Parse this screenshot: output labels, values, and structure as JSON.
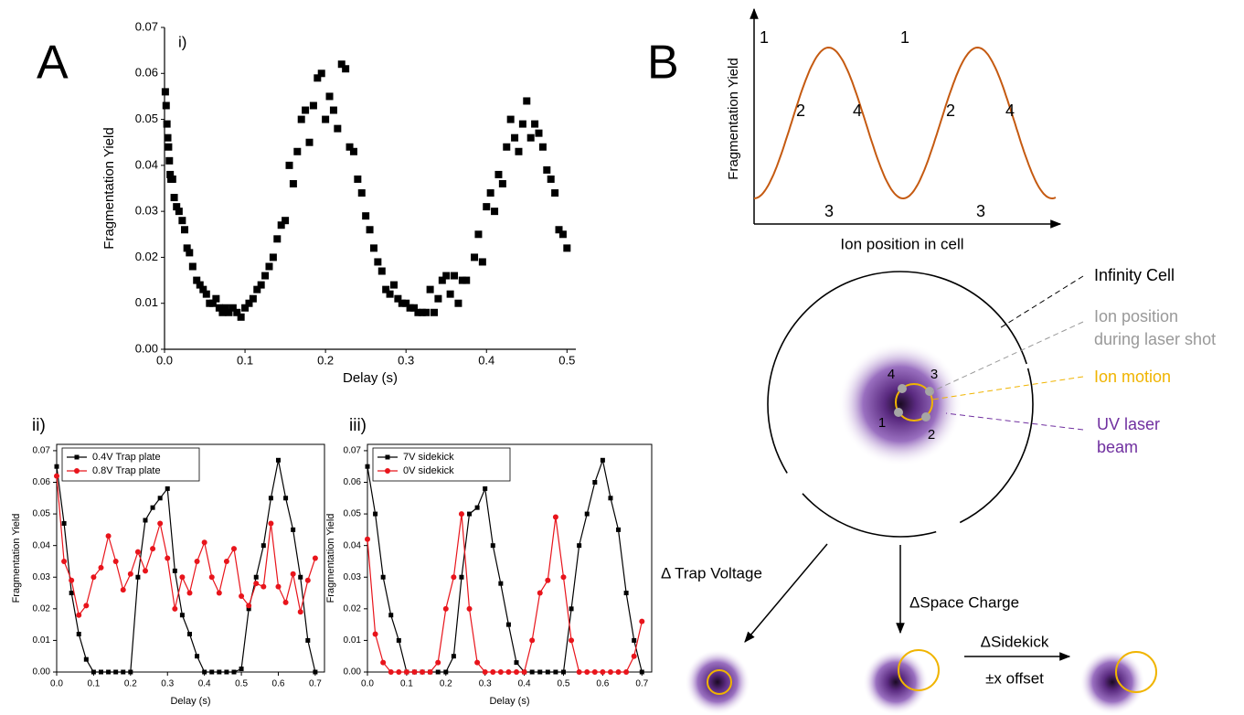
{
  "panel_labels": [
    "A",
    "B"
  ],
  "chart_data": [
    {
      "type": "scatter",
      "annotation": "i)",
      "x_label": "Delay (s)",
      "y_label": "Fragmentation Yield",
      "color": "#000000",
      "x": [
        0.001,
        0.002,
        0.003,
        0.004,
        0.005,
        0.006,
        0.007,
        0.008,
        0.01,
        0.012,
        0.015,
        0.018,
        0.022,
        0.025,
        0.028,
        0.031,
        0.035,
        0.04,
        0.044,
        0.048,
        0.052,
        0.056,
        0.06,
        0.064,
        0.068,
        0.072,
        0.076,
        0.08,
        0.085,
        0.09,
        0.095,
        0.1,
        0.105,
        0.11,
        0.115,
        0.12,
        0.125,
        0.13,
        0.135,
        0.14,
        0.145,
        0.15,
        0.155,
        0.16,
        0.165,
        0.17,
        0.175,
        0.18,
        0.185,
        0.19,
        0.195,
        0.2,
        0.205,
        0.21,
        0.215,
        0.22,
        0.225,
        0.23,
        0.235,
        0.24,
        0.245,
        0.25,
        0.255,
        0.26,
        0.265,
        0.27,
        0.275,
        0.28,
        0.285,
        0.29,
        0.295,
        0.3,
        0.305,
        0.31,
        0.315,
        0.32,
        0.325,
        0.33,
        0.335,
        0.34,
        0.345,
        0.35,
        0.355,
        0.36,
        0.365,
        0.37,
        0.375,
        0.385,
        0.39,
        0.395,
        0.4,
        0.405,
        0.41,
        0.415,
        0.42,
        0.425,
        0.43,
        0.435,
        0.44,
        0.445,
        0.45,
        0.455,
        0.46,
        0.465,
        0.47,
        0.475,
        0.48,
        0.485,
        0.49,
        0.495,
        0.5
      ],
      "values": [
        0.056,
        0.053,
        0.049,
        0.046,
        0.044,
        0.041,
        0.038,
        0.037,
        0.037,
        0.033,
        0.031,
        0.03,
        0.028,
        0.026,
        0.022,
        0.021,
        0.018,
        0.015,
        0.014,
        0.013,
        0.012,
        0.01,
        0.01,
        0.011,
        0.009,
        0.008,
        0.009,
        0.008,
        0.009,
        0.008,
        0.007,
        0.009,
        0.01,
        0.011,
        0.013,
        0.014,
        0.016,
        0.018,
        0.02,
        0.024,
        0.027,
        0.028,
        0.04,
        0.036,
        0.043,
        0.05,
        0.052,
        0.045,
        0.053,
        0.059,
        0.06,
        0.05,
        0.055,
        0.052,
        0.048,
        0.062,
        0.061,
        0.044,
        0.043,
        0.037,
        0.034,
        0.029,
        0.026,
        0.022,
        0.019,
        0.017,
        0.013,
        0.012,
        0.014,
        0.011,
        0.01,
        0.01,
        0.009,
        0.009,
        0.008,
        0.008,
        0.008,
        0.013,
        0.008,
        0.011,
        0.015,
        0.016,
        0.012,
        0.016,
        0.01,
        0.015,
        0.015,
        0.02,
        0.025,
        0.019,
        0.031,
        0.034,
        0.03,
        0.038,
        0.036,
        0.044,
        0.05,
        0.046,
        0.043,
        0.049,
        0.054,
        0.046,
        0.049,
        0.047,
        0.044,
        0.039,
        0.037,
        0.034,
        0.026,
        0.025,
        0.022
      ],
      "xlim": [
        0,
        0.511
      ],
      "ylim": [
        0,
        0.07
      ],
      "xticks": [
        {
          "value": 0,
          "label": "0.0"
        },
        0.1,
        0.2,
        0.3,
        0.4,
        0.5
      ],
      "yticks": [
        {
          "value": 0,
          "label": "0.00"
        },
        0.01,
        0.02,
        0.03,
        0.04,
        0.05,
        0.06,
        0.07
      ]
    },
    {
      "type": "line",
      "annotation": "ii)",
      "x_label": "Delay (s)",
      "y_label": "Fragmentation Yield",
      "legend": "upper left",
      "x": [
        0,
        0.02,
        0.04,
        0.06,
        0.08,
        0.1,
        0.12,
        0.14,
        0.16,
        0.18,
        0.2,
        0.22,
        0.24,
        0.26,
        0.28,
        0.3,
        0.32,
        0.34,
        0.36,
        0.38,
        0.4,
        0.42,
        0.44,
        0.46,
        0.48,
        0.5,
        0.52,
        0.54,
        0.56,
        0.58,
        0.6,
        0.62,
        0.64,
        0.66,
        0.68,
        0.7
      ],
      "series": [
        {
          "name": "0.4V Trap plate",
          "color": "#000000",
          "marker": "square",
          "values": [
            0.065,
            0.047,
            0.025,
            0.012,
            0.004,
            0,
            0,
            0,
            0,
            0,
            0,
            0.03,
            0.048,
            0.052,
            0.055,
            0.058,
            0.032,
            0.018,
            0.012,
            0.005,
            0,
            0,
            0,
            0,
            0,
            0.001,
            0.02,
            0.03,
            0.04,
            0.055,
            0.067,
            0.055,
            0.045,
            0.03,
            0.01,
            0
          ]
        },
        {
          "name": "0.8V Trap plate",
          "color": "#e8141b",
          "marker": "circle",
          "values": [
            0.062,
            0.035,
            0.029,
            0.018,
            0.021,
            0.03,
            0.033,
            0.043,
            0.035,
            0.026,
            0.031,
            0.038,
            0.032,
            0.039,
            0.047,
            0.036,
            0.02,
            0.03,
            0.025,
            0.035,
            0.041,
            0.03,
            0.025,
            0.035,
            0.039,
            0.024,
            0.021,
            0.028,
            0.027,
            0.047,
            0.027,
            0.022,
            0.031,
            0.019,
            0.029,
            0.036
          ]
        }
      ],
      "xlim": [
        0,
        0.725
      ],
      "ylim": [
        0,
        0.072
      ],
      "xticks": [
        {
          "value": 0,
          "label": "0.0"
        },
        0.1,
        0.2,
        0.3,
        0.4,
        0.5,
        0.6,
        0.7
      ],
      "yticks": [
        {
          "value": 0,
          "label": "0.00"
        },
        0.01,
        0.02,
        0.03,
        0.04,
        0.05,
        0.06,
        0.07
      ]
    },
    {
      "type": "line",
      "annotation": "iii)",
      "x_label": "Delay (s)",
      "y_label": "Fragmentation Yield",
      "legend": "upper left",
      "x": [
        0,
        0.02,
        0.04,
        0.06,
        0.08,
        0.1,
        0.12,
        0.14,
        0.16,
        0.18,
        0.2,
        0.22,
        0.24,
        0.26,
        0.28,
        0.3,
        0.32,
        0.34,
        0.36,
        0.38,
        0.4,
        0.42,
        0.44,
        0.46,
        0.48,
        0.5,
        0.52,
        0.54,
        0.56,
        0.58,
        0.6,
        0.62,
        0.64,
        0.66,
        0.68,
        0.7
      ],
      "series": [
        {
          "name": "7V sidekick",
          "color": "#000000",
          "marker": "square",
          "values": [
            0.065,
            0.05,
            0.03,
            0.018,
            0.01,
            0,
            0,
            0,
            0,
            0,
            0,
            0.005,
            0.03,
            0.05,
            0.052,
            0.058,
            0.04,
            0.028,
            0.015,
            0.003,
            0,
            0,
            0,
            0,
            0,
            0,
            0.02,
            0.04,
            0.05,
            0.06,
            0.067,
            0.055,
            0.045,
            0.025,
            0.01,
            0
          ]
        },
        {
          "name": "0V sidekick",
          "color": "#e8141b",
          "marker": "circle",
          "values": [
            0.042,
            0.012,
            0.003,
            0,
            0,
            0,
            0,
            0,
            0,
            0.003,
            0.02,
            0.03,
            0.05,
            0.02,
            0.003,
            0,
            0,
            0,
            0,
            0,
            0,
            0.01,
            0.025,
            0.029,
            0.049,
            0.03,
            0.01,
            0,
            0,
            0,
            0,
            0,
            0,
            0,
            0.005,
            0.016
          ]
        }
      ],
      "xlim": [
        0,
        0.725
      ],
      "ylim": [
        0,
        0.072
      ],
      "xticks": [
        {
          "value": 0,
          "label": "0.0"
        },
        0.1,
        0.2,
        0.3,
        0.4,
        0.5,
        0.6,
        0.7
      ],
      "yticks": [
        {
          "value": 0,
          "label": "0.00"
        },
        0.01,
        0.02,
        0.03,
        0.04,
        0.05,
        0.06,
        0.07
      ]
    }
  ],
  "diagram": {
    "y_label": "Fragmentation Yield",
    "x_label": "Ion position in cell",
    "curve_labels": [
      "1",
      "2",
      "3",
      "4",
      "1",
      "2",
      "3",
      "4"
    ],
    "legend": [
      [
        "Infinity Cell"
      ],
      [
        "Ion position",
        "during laser shot"
      ],
      [
        "Ion motion"
      ],
      [
        "UV laser",
        "beam"
      ]
    ],
    "ion_points": [
      "1",
      "2",
      "3",
      "4"
    ],
    "arrows": [
      "Δ Trap Voltage",
      "ΔSpace Charge",
      "ΔSidekick",
      "±x offset"
    ]
  }
}
